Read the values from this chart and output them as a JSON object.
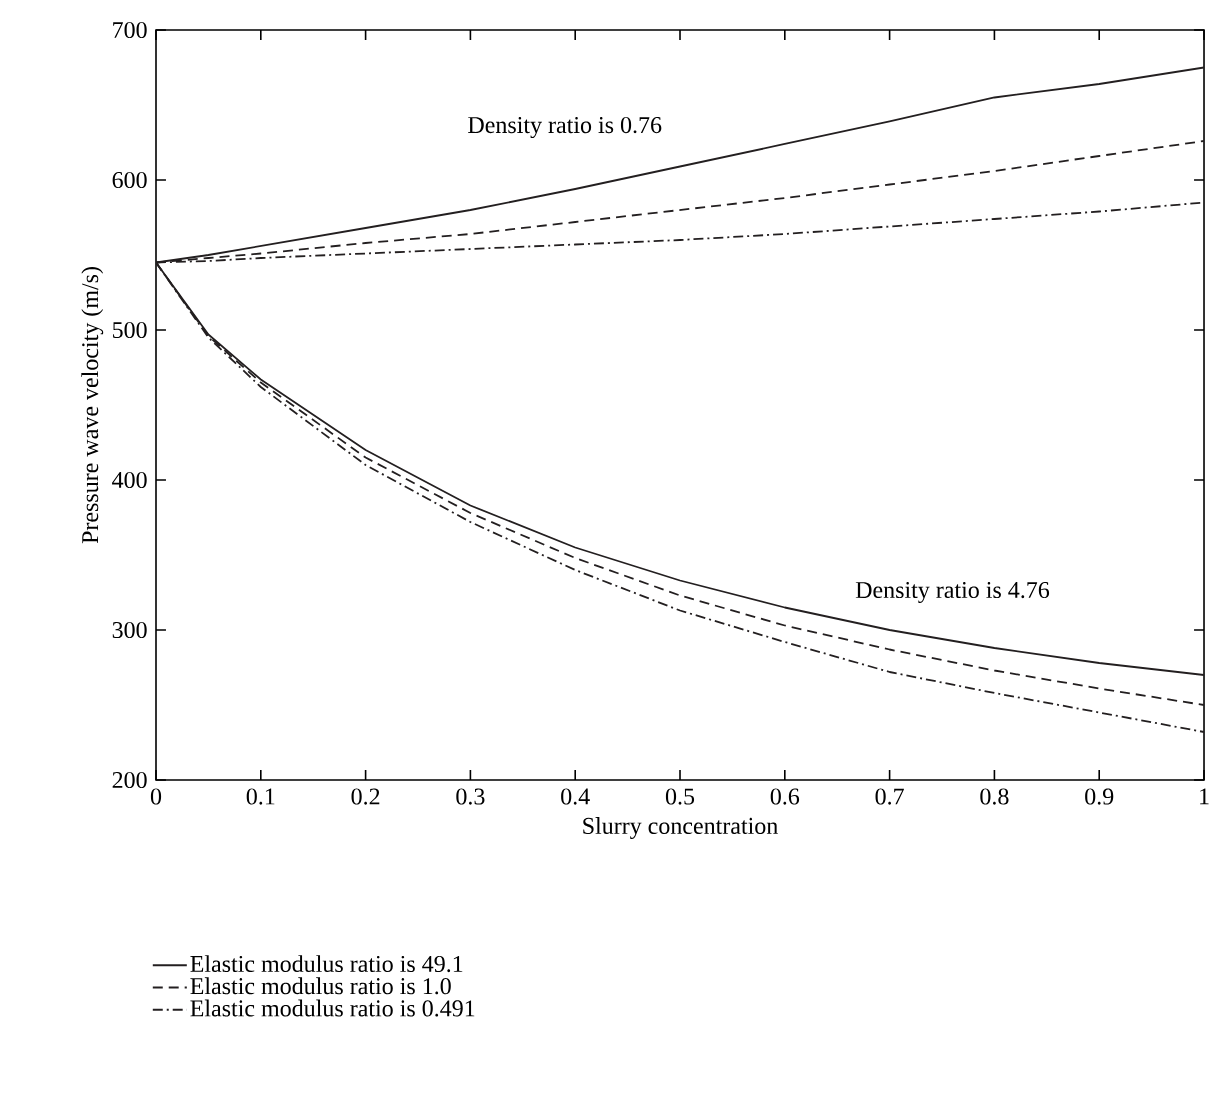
{
  "chart_data": {
    "type": "line",
    "xlabel": "Slurry concentration",
    "ylabel": "Pressure wave velocity (m/s)",
    "x": [
      0,
      0.05,
      0.1,
      0.2,
      0.3,
      0.4,
      0.5,
      0.6,
      0.7,
      0.8,
      0.9,
      1
    ],
    "series": [
      {
        "name": "Elastic modulus ratio is 49.1",
        "color": "#231f20",
        "line_style": "solid",
        "values": [
          545,
          550,
          556,
          568,
          580,
          594,
          609,
          624,
          639,
          655,
          664,
          675
        ]
      },
      {
        "name": "Elastic modulus ratio is 1.0",
        "color": "#231f20",
        "line_style": "dashed",
        "values": [
          545,
          548,
          551,
          558,
          564,
          572,
          580,
          588,
          597,
          606,
          616,
          626
        ]
      },
      {
        "name": "Elastic modulus ratio is 0.491",
        "color": "#231f20",
        "line_style": "dashdot",
        "values": [
          545,
          546,
          548,
          551,
          554,
          557,
          560,
          564,
          569,
          574,
          579,
          585
        ]
      },
      {
        "color": "#231f20",
        "line_style": "solid",
        "values": [
          545,
          497,
          467,
          420,
          383,
          355,
          333,
          315,
          300,
          288,
          278,
          270
        ]
      },
      {
        "color": "#231f20",
        "line_style": "dashed",
        "values": [
          545,
          496,
          465,
          415,
          378,
          348,
          323,
          303,
          287,
          273,
          261,
          250
        ]
      },
      {
        "color": "#231f20",
        "line_style": "dashdot",
        "values": [
          545,
          495,
          462,
          410,
          372,
          340,
          313,
          292,
          272,
          258,
          245,
          232
        ]
      }
    ],
    "xlim": [
      0,
      1
    ],
    "ylim": [
      200,
      700
    ],
    "xticks": [
      0,
      0.1,
      0.2,
      0.3,
      0.4,
      0.5,
      0.6,
      0.7,
      0.8,
      0.9,
      1
    ],
    "yticks": [
      200,
      300,
      400,
      500,
      600,
      700
    ],
    "annotations": [
      "Density ratio is 0.76",
      "Density ratio is 4.76"
    ],
    "legend": "bottom",
    "grid": false
  }
}
